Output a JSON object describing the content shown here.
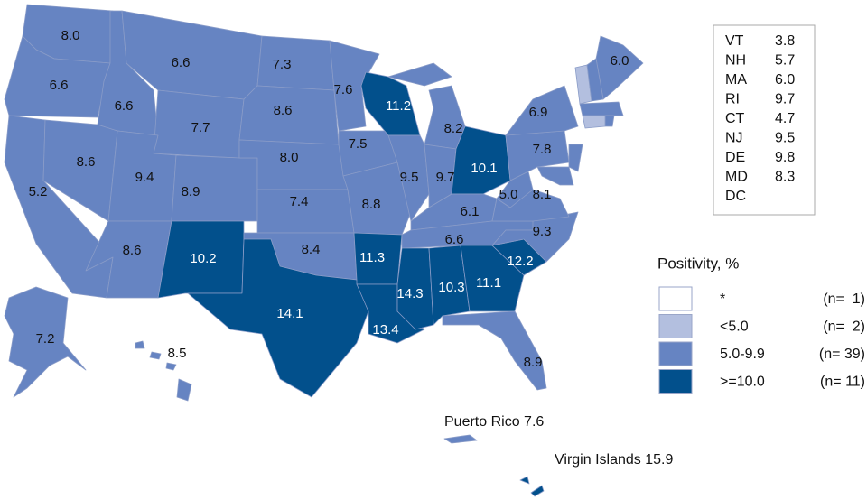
{
  "states": [
    {
      "value": "8.0",
      "level": 2
    },
    {
      "value": "6.6",
      "level": 2
    },
    {
      "value": "5.2",
      "level": 2
    },
    {
      "value": "8.6",
      "level": 2
    },
    {
      "value": "6.6",
      "level": 2
    },
    {
      "value": "6.6",
      "level": 2
    },
    {
      "value": "7.7",
      "level": 2
    },
    {
      "value": "9.4",
      "level": 2
    },
    {
      "value": "8.6",
      "level": 2
    },
    {
      "value": "8.9",
      "level": 2
    },
    {
      "value": "10.2",
      "level": 3
    },
    {
      "value": "7.3",
      "level": 2
    },
    {
      "value": "8.6",
      "level": 2
    },
    {
      "value": "8.0",
      "level": 2
    },
    {
      "value": "7.4",
      "level": 2
    },
    {
      "value": "8.4",
      "level": 2
    },
    {
      "value": "14.1",
      "level": 3
    },
    {
      "value": "7.6",
      "level": 2
    },
    {
      "value": "7.5",
      "level": 2
    },
    {
      "value": "8.8",
      "level": 2
    },
    {
      "value": "11.3",
      "level": 3
    },
    {
      "value": "13.4",
      "level": 3
    },
    {
      "value": "11.2",
      "level": 3
    },
    {
      "value": "9.5",
      "level": 2
    },
    {
      "value": "8.2",
      "level": 2
    },
    {
      "value": "9.7",
      "level": 2
    },
    {
      "value": "10.1",
      "level": 3
    },
    {
      "value": "6.1",
      "level": 2
    },
    {
      "value": "6.6",
      "level": 2
    },
    {
      "value": "14.3",
      "level": 3
    },
    {
      "value": "10.3",
      "level": 3
    },
    {
      "value": "11.1",
      "level": 3
    },
    {
      "value": "12.2",
      "level": 3
    },
    {
      "value": "8.9",
      "level": 2
    },
    {
      "value": "9.3",
      "level": 2
    },
    {
      "value": "8.1",
      "level": 2
    },
    {
      "value": "5.0",
      "level": 2
    },
    {
      "value": "7.8",
      "level": 2
    },
    {
      "value": "6.9",
      "level": 2
    },
    {
      "value": "6.0",
      "level": 2
    },
    {
      "value": "7.2",
      "level": 2
    },
    {
      "value": "8.5",
      "level": 2
    },
    {
      "level": 1
    },
    {
      "level": 2
    },
    {
      "level": 2
    },
    {
      "level": 2
    },
    {
      "level": 1
    },
    {
      "level": 2
    },
    {
      "level": 2
    }
  ],
  "inset": [
    [
      "VT",
      "3.8"
    ],
    [
      "NH",
      "5.7"
    ],
    [
      "MA",
      "6.0"
    ],
    [
      "RI",
      "9.7"
    ],
    [
      "CT",
      "4.7"
    ],
    [
      "NJ",
      "9.5"
    ],
    [
      "DE",
      "9.8"
    ],
    [
      "MD",
      "8.3"
    ],
    [
      "DC"
    ]
  ],
  "legend": {
    "title": "Positivity, %",
    "items": [
      {
        "label": "*",
        "count": "(n=  1)",
        "color": "#ffffff"
      },
      {
        "label": "<5.0",
        "count": "(n=  2)",
        "color": "#b3bfdf"
      },
      {
        "label": "5.0-9.9",
        "count": "(n= 39)",
        "color": "#6684c2"
      },
      {
        "label": ">=10.0",
        "count": "(n= 11)",
        "color": "#02508c"
      }
    ]
  },
  "territories": [
    {
      "label": "Puerto Rico 7.6",
      "level": 2
    },
    {
      "label": "Virgin Islands 15.9",
      "level": 3
    }
  ]
}
